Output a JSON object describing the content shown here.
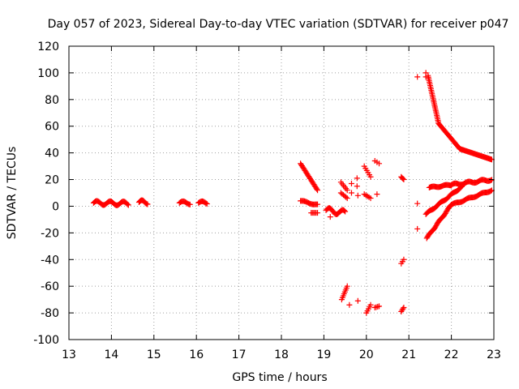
{
  "chart_data": {
    "type": "scatter",
    "title": "Day 057 of 2023, Sidereal Day-to-day VTEC variation (SDTVAR) for receiver p047",
    "xlabel": "GPS time / hours",
    "ylabel": "SDTVAR / TECUs",
    "xlim": [
      13,
      23
    ],
    "ylim": [
      -100,
      120
    ],
    "x_ticks": [
      "13",
      "14",
      "15",
      "16",
      "17",
      "18",
      "19",
      "20",
      "21",
      "22",
      "23"
    ],
    "y_ticks": [
      "-100",
      "-80",
      "-60",
      "-40",
      "-20",
      "0",
      "20",
      "40",
      "60",
      "80",
      "100",
      "120"
    ],
    "grid": true,
    "marker": "+",
    "color": "#ff0000",
    "segments": [
      {
        "x0": 13.58,
        "x1": 14.4,
        "y0": 2.5,
        "y1": 2,
        "n": 40,
        "spread": 1.5
      },
      {
        "x0": 14.65,
        "x1": 14.85,
        "y0": 3,
        "y1": 3,
        "n": 12,
        "spread": 1.5
      },
      {
        "x0": 15.6,
        "x1": 15.85,
        "y0": 2.5,
        "y1": 2.5,
        "n": 12,
        "spread": 1.2
      },
      {
        "x0": 16.05,
        "x1": 16.25,
        "y0": 2.5,
        "y1": 2.5,
        "n": 10,
        "spread": 1.2
      },
      {
        "x0": 18.45,
        "x1": 18.85,
        "y0": 32,
        "y1": 12,
        "n": 24,
        "spread": 0
      },
      {
        "x0": 18.45,
        "x1": 18.85,
        "y0": 4,
        "y1": 1,
        "n": 18,
        "spread": 0.5
      },
      {
        "x0": 18.7,
        "x1": 18.85,
        "y0": -5,
        "y1": -5,
        "n": 6,
        "spread": 0
      },
      {
        "x0": 19.05,
        "x1": 19.5,
        "y0": -3,
        "y1": -5,
        "n": 22,
        "spread": 2
      },
      {
        "x0": 19.4,
        "x1": 19.55,
        "y0": 18,
        "y1": 12,
        "n": 6,
        "spread": 0
      },
      {
        "x0": 19.4,
        "x1": 19.55,
        "y0": 10,
        "y1": 6,
        "n": 6,
        "spread": 0
      },
      {
        "x0": 19.42,
        "x1": 19.55,
        "y0": -70,
        "y1": -60,
        "n": 8,
        "spread": 0
      },
      {
        "x0": 19.95,
        "x1": 20.1,
        "y0": 30,
        "y1": 22,
        "n": 6,
        "spread": 0
      },
      {
        "x0": 19.95,
        "x1": 20.1,
        "y0": 9,
        "y1": 6,
        "n": 5,
        "spread": 0
      },
      {
        "x0": 20.0,
        "x1": 20.1,
        "y0": -80,
        "y1": -74,
        "n": 5,
        "spread": 0
      },
      {
        "x0": 20.2,
        "x1": 20.3,
        "y0": 34,
        "y1": 32,
        "n": 3,
        "spread": 0
      },
      {
        "x0": 20.2,
        "x1": 20.3,
        "y0": -76,
        "y1": -75,
        "n": 4,
        "spread": 0
      },
      {
        "x0": 20.82,
        "x1": 20.88,
        "y0": 22,
        "y1": 20,
        "n": 4,
        "spread": 0
      },
      {
        "x0": 20.82,
        "x1": 20.88,
        "y0": -43,
        "y1": -40,
        "n": 3,
        "spread": 0
      },
      {
        "x0": 20.82,
        "x1": 20.88,
        "y0": -79,
        "y1": -76,
        "n": 4,
        "spread": 0
      },
      {
        "x0": 21.45,
        "x1": 21.7,
        "y0": 98,
        "y1": 62,
        "n": 30,
        "spread": 0
      },
      {
        "x0": 21.7,
        "x1": 22.2,
        "y0": 62,
        "y1": 43,
        "n": 30,
        "spread": 0
      },
      {
        "x0": 22.2,
        "x1": 22.95,
        "y0": 43,
        "y1": 35,
        "n": 40,
        "spread": 0
      },
      {
        "x0": 21.48,
        "x1": 22.0,
        "y0": 14,
        "y1": 16,
        "n": 26,
        "spread": 0.5
      },
      {
        "x0": 22.0,
        "x1": 22.95,
        "y0": 16,
        "y1": 20,
        "n": 45,
        "spread": 0.8
      },
      {
        "x0": 21.4,
        "x1": 22.3,
        "y0": -6,
        "y1": 16,
        "n": 50,
        "spread": 0.5
      },
      {
        "x0": 21.42,
        "x1": 22.0,
        "y0": -24,
        "y1": 1,
        "n": 38,
        "spread": 0.5
      },
      {
        "x0": 22.0,
        "x1": 22.95,
        "y0": 1,
        "y1": 12,
        "n": 45,
        "spread": 0.5
      }
    ],
    "points": [
      {
        "x": 21.2,
        "y": 97
      },
      {
        "x": 21.2,
        "y": 2
      },
      {
        "x": 21.2,
        "y": -17
      },
      {
        "x": 19.15,
        "y": -8
      },
      {
        "x": 19.6,
        "y": -74
      },
      {
        "x": 19.8,
        "y": -71
      },
      {
        "x": 19.65,
        "y": 17
      },
      {
        "x": 19.78,
        "y": 21
      },
      {
        "x": 19.78,
        "y": 15
      },
      {
        "x": 19.8,
        "y": 8
      },
      {
        "x": 19.65,
        "y": 10
      },
      {
        "x": 20.25,
        "y": 9
      },
      {
        "x": 21.4,
        "y": 100
      },
      {
        "x": 21.4,
        "y": 97
      }
    ]
  }
}
